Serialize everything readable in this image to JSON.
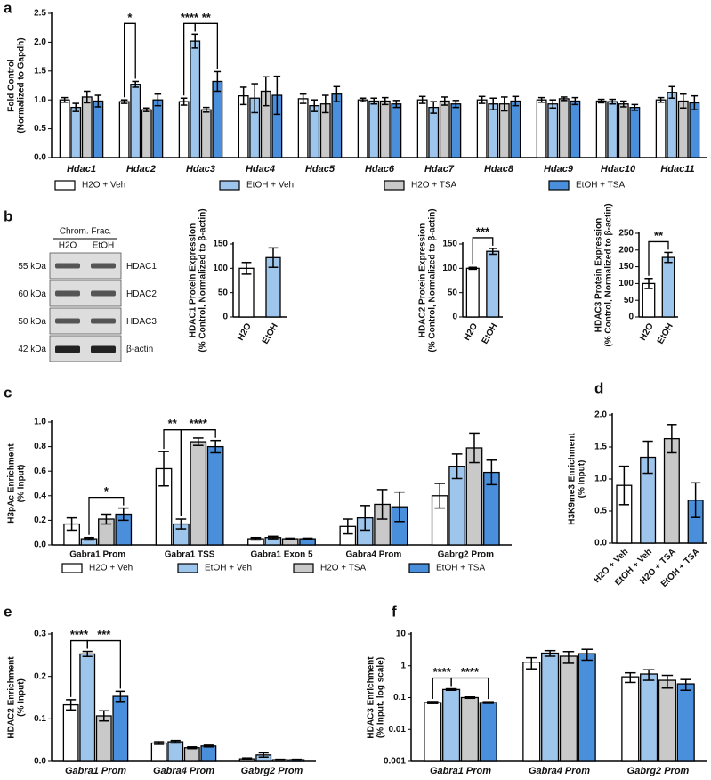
{
  "chart_data": [
    {
      "type": "bar",
      "panel": "a",
      "ylabel": [
        "Fold Control",
        "(Normalized to Gapdh)"
      ],
      "categories": [
        "Hdac1",
        "Hdac2",
        "Hdac3",
        "Hdac4",
        "Hdac5",
        "Hdac6",
        "Hdac7",
        "Hdac8",
        "Hdac9",
        "Hdac10",
        "Hdac11"
      ],
      "series": [
        {
          "name": "H2O + Veh",
          "color": "#ffffff",
          "values": [
            1.0,
            0.97,
            0.97,
            1.07,
            1.02,
            1.0,
            1.0,
            1.0,
            1.0,
            0.98,
            1.0
          ],
          "errors": [
            0.04,
            0.03,
            0.06,
            0.15,
            0.08,
            0.03,
            0.06,
            0.06,
            0.04,
            0.03,
            0.04
          ]
        },
        {
          "name": "EtOH + Veh",
          "color": "#9ec5ec",
          "values": [
            0.87,
            1.27,
            2.02,
            1.03,
            0.9,
            0.98,
            0.87,
            0.93,
            0.93,
            0.97,
            1.13
          ],
          "errors": [
            0.07,
            0.05,
            0.12,
            0.25,
            0.1,
            0.05,
            0.1,
            0.1,
            0.07,
            0.04,
            0.1
          ]
        },
        {
          "name": "H2O + TSA",
          "color": "#c9c9c9",
          "values": [
            1.05,
            0.83,
            0.83,
            1.15,
            0.93,
            0.98,
            0.98,
            0.93,
            1.02,
            0.93,
            0.98
          ],
          "errors": [
            0.1,
            0.03,
            0.04,
            0.25,
            0.15,
            0.06,
            0.07,
            0.12,
            0.03,
            0.05,
            0.12
          ]
        },
        {
          "name": "EtOH + TSA",
          "color": "#4a8fdc",
          "values": [
            0.98,
            1.0,
            1.32,
            1.08,
            1.1,
            0.93,
            0.93,
            0.98,
            0.98,
            0.87,
            0.95
          ],
          "errors": [
            0.1,
            0.1,
            0.17,
            0.33,
            0.13,
            0.06,
            0.06,
            0.08,
            0.06,
            0.05,
            0.12
          ]
        }
      ],
      "ylim": [
        0,
        2.5
      ],
      "yticks": [
        {
          "value": 0,
          "label": "0.0"
        },
        0.5,
        {
          "value": 1,
          "label": "1.0"
        },
        1.5,
        {
          "value": 2,
          "label": "2.0"
        },
        2.5
      ],
      "annotations": [
        "*",
        "****",
        "**"
      ]
    },
    {
      "type": "bar",
      "panel": "b",
      "ylabel": [
        "HDAC1 Protein Expression",
        "(% Control, Normalized to β-actin)"
      ],
      "categories": [
        "H2O",
        "EtOH"
      ],
      "values": [
        100,
        122
      ],
      "errors": [
        12,
        20
      ],
      "colors": [
        "#ffffff",
        "#9ec5ec"
      ],
      "ylim": [
        0,
        150
      ],
      "yticks": [
        0,
        50,
        100,
        150
      ],
      "annotations": []
    },
    {
      "type": "bar",
      "ylabel": [
        "HDAC2 Protein Expression",
        "(% Control, Normalized to β-actin)"
      ],
      "categories": [
        "H2O",
        "EtOH"
      ],
      "values": [
        100,
        135
      ],
      "errors": [
        2,
        6
      ],
      "colors": [
        "#ffffff",
        "#9ec5ec"
      ],
      "ylim": [
        0,
        150
      ],
      "yticks": [
        0,
        50,
        100,
        150
      ],
      "annotations": [
        "***"
      ]
    },
    {
      "type": "bar",
      "ylabel": [
        "HDAC3 Protein Expression",
        "(% Control, Normalized to β-actin)"
      ],
      "categories": [
        "H2O",
        "EtOH"
      ],
      "values": [
        100,
        178
      ],
      "errors": [
        15,
        15
      ],
      "colors": [
        "#ffffff",
        "#9ec5ec"
      ],
      "ylim": [
        0,
        250
      ],
      "yticks": [
        0,
        50,
        100,
        150,
        200,
        250
      ],
      "annotations": [
        "**"
      ]
    },
    {
      "type": "bar",
      "panel": "c",
      "ylabel": [
        "H3pAc Enrichment",
        "(% Input)"
      ],
      "categories": [
        "Gabra1 Prom",
        "Gabra1 TSS",
        "Gabra1 Exon 5",
        "Gabra4 Prom",
        "Gabrg2 Prom"
      ],
      "series": [
        {
          "name": "H2O + Veh",
          "color": "#ffffff",
          "values": [
            0.17,
            0.62,
            0.05,
            0.15,
            0.4
          ],
          "errors": [
            0.05,
            0.14,
            0.01,
            0.06,
            0.1
          ]
        },
        {
          "name": "EtOH + Veh",
          "color": "#9ec5ec",
          "values": [
            0.05,
            0.17,
            0.06,
            0.22,
            0.64
          ],
          "errors": [
            0.01,
            0.04,
            0.01,
            0.1,
            0.1
          ]
        },
        {
          "name": "H2O + TSA",
          "color": "#c9c9c9",
          "values": [
            0.21,
            0.84,
            0.05,
            0.33,
            0.79
          ],
          "errors": [
            0.04,
            0.03,
            0.005,
            0.12,
            0.12
          ]
        },
        {
          "name": "EtOH + TSA",
          "color": "#4a8fdc",
          "values": [
            0.25,
            0.8,
            0.05,
            0.31,
            0.59
          ],
          "errors": [
            0.05,
            0.05,
            0.005,
            0.12,
            0.1
          ]
        }
      ],
      "ylim": [
        0,
        1
      ],
      "yticks": [
        {
          "value": 0,
          "label": "0.0"
        },
        0.2,
        0.4,
        0.6,
        0.8,
        {
          "value": 1,
          "label": "1.0"
        }
      ],
      "annotations": [
        "*",
        "**",
        "****"
      ]
    },
    {
      "type": "bar",
      "panel": "d",
      "ylabel": [
        "H3K9me3 Enrichment",
        "(% Input)"
      ],
      "categories": [
        "H2O + Veh",
        "EtOH + Veh",
        "H2O + TSA",
        "EtOH + TSA"
      ],
      "values": [
        0.9,
        1.34,
        1.63,
        0.67
      ],
      "errors": [
        0.3,
        0.25,
        0.22,
        0.27
      ],
      "colors": [
        "#ffffff",
        "#9ec5ec",
        "#c9c9c9",
        "#4a8fdc"
      ],
      "ylim": [
        0,
        2
      ],
      "yticks": [
        {
          "value": 0,
          "label": "0.0"
        },
        0.5,
        {
          "value": 1,
          "label": "1.0"
        },
        1.5,
        {
          "value": 2,
          "label": "2.0"
        }
      ],
      "annotations": []
    },
    {
      "type": "bar",
      "panel": "e",
      "ylabel": [
        "HDAC2 Enrichment",
        "(% Input)"
      ],
      "categories": [
        "Gabra1 Prom",
        "Gabra4 Prom",
        "Gabrg2 Prom"
      ],
      "series": [
        {
          "color": "#ffffff",
          "values": [
            0.133,
            0.043,
            0.006
          ],
          "errors": [
            0.012,
            0.003,
            0.002
          ]
        },
        {
          "color": "#9ec5ec",
          "values": [
            0.253,
            0.046,
            0.015
          ],
          "errors": [
            0.006,
            0.003,
            0.005
          ]
        },
        {
          "color": "#c9c9c9",
          "values": [
            0.107,
            0.032,
            0.004
          ],
          "errors": [
            0.012,
            0.002,
            0.001
          ]
        },
        {
          "color": "#4a8fdc",
          "values": [
            0.153,
            0.036,
            0.004
          ],
          "errors": [
            0.012,
            0.002,
            0.001
          ]
        }
      ],
      "ylim": [
        0,
        0.3
      ],
      "yticks": [
        {
          "value": 0,
          "label": "0.0"
        },
        0.1,
        0.2,
        0.3
      ],
      "annotations": [
        "****",
        "***"
      ]
    },
    {
      "type": "bar",
      "panel": "f",
      "log_scale": true,
      "ylabel": [
        "HDAC3 Enrichment",
        "(% Input, log scale)"
      ],
      "categories": [
        "Gabra1 Prom",
        "Gabra4 Prom",
        "Gabrg2 Prom"
      ],
      "series": [
        {
          "color": "#ffffff",
          "values": [
            0.07,
            1.3,
            0.45
          ],
          "errors": [
            0.005,
            0.5,
            0.15
          ]
        },
        {
          "color": "#9ec5ec",
          "values": [
            0.18,
            2.5,
            0.55
          ],
          "errors": [
            0.01,
            0.5,
            0.2
          ]
        },
        {
          "color": "#c9c9c9",
          "values": [
            0.1,
            2.0,
            0.35
          ],
          "errors": [
            0.005,
            0.8,
            0.15
          ]
        },
        {
          "color": "#4a8fdc",
          "values": [
            0.07,
            2.4,
            0.27
          ],
          "errors": [
            0.004,
            0.9,
            0.1
          ]
        }
      ],
      "ylim": [
        0.001,
        10
      ],
      "yticks": [
        0.001,
        0.01,
        0.1,
        1,
        10
      ],
      "annotations": [
        "****",
        "****"
      ]
    }
  ],
  "blot": {
    "header": "Chrom. Frac.",
    "lanes": [
      "H2O",
      "EtOH"
    ],
    "rows": [
      {
        "kda": "55 kDa",
        "protein": "HDAC1"
      },
      {
        "kda": "60 kDa",
        "protein": "HDAC2"
      },
      {
        "kda": "50 kDa",
        "protein": "HDAC3"
      },
      {
        "kda": "42 kDa",
        "protein": "β-actin"
      }
    ]
  }
}
